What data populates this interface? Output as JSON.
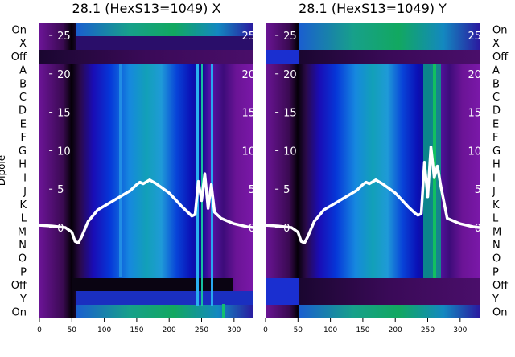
{
  "chart_data": [
    {
      "type": "heatmap",
      "title": "28.1 (HexS13=1049) X",
      "ylabel": "Dipole",
      "row_labels": [
        "On",
        "X",
        "Off",
        "A",
        "B",
        "C",
        "D",
        "E",
        "F",
        "G",
        "H",
        "I",
        "J",
        "K",
        "L",
        "M",
        "N",
        "O",
        "P",
        "Off",
        "Y",
        "On"
      ],
      "x_ticks": [
        0,
        50,
        100,
        150,
        200,
        250,
        300
      ],
      "xlim": [
        0,
        330
      ],
      "y_ticks": [
        0,
        5,
        10,
        15,
        20,
        25
      ],
      "trace": {
        "x": [
          0,
          20,
          40,
          50,
          55,
          60,
          65,
          75,
          90,
          110,
          130,
          140,
          145,
          150,
          155,
          160,
          170,
          180,
          190,
          200,
          210,
          220,
          230,
          235,
          240,
          245,
          250,
          255,
          260,
          265,
          270,
          280,
          300,
          320,
          330
        ],
        "y": [
          0.3,
          0.2,
          0.0,
          -0.6,
          -1.8,
          -2.0,
          -1.2,
          0.8,
          2.3,
          3.3,
          4.3,
          4.8,
          5.2,
          5.6,
          5.9,
          5.7,
          6.2,
          5.7,
          5.1,
          4.5,
          3.6,
          2.7,
          1.9,
          1.5,
          1.7,
          6.0,
          3.5,
          7.0,
          2.5,
          5.6,
          2.0,
          1.2,
          0.5,
          0.1,
          0.0
        ]
      }
    },
    {
      "type": "heatmap",
      "title": "28.1 (HexS13=1049) Y",
      "ylabel": "",
      "row_labels": [
        "On",
        "X",
        "Off",
        "A",
        "B",
        "C",
        "D",
        "E",
        "F",
        "G",
        "H",
        "I",
        "J",
        "K",
        "L",
        "M",
        "N",
        "O",
        "P",
        "Off",
        "Y",
        "On"
      ],
      "x_ticks": [
        0,
        50,
        100,
        150,
        200,
        250,
        300
      ],
      "xlim": [
        0,
        330
      ],
      "y_ticks": [
        0,
        5,
        10,
        15,
        20,
        25
      ],
      "trace": {
        "x": [
          0,
          20,
          40,
          50,
          55,
          60,
          65,
          75,
          90,
          110,
          130,
          140,
          145,
          150,
          155,
          160,
          170,
          180,
          190,
          200,
          210,
          220,
          230,
          235,
          240,
          245,
          250,
          255,
          260,
          265,
          270,
          280,
          300,
          320,
          330
        ],
        "y": [
          0.3,
          0.2,
          0.0,
          -0.6,
          -1.8,
          -2.0,
          -1.2,
          0.8,
          2.3,
          3.3,
          4.3,
          4.8,
          5.2,
          5.6,
          5.9,
          5.7,
          6.2,
          5.7,
          5.1,
          4.5,
          3.6,
          2.7,
          1.9,
          1.6,
          1.8,
          8.5,
          4.0,
          10.5,
          6.5,
          8.0,
          5.5,
          1.2,
          0.5,
          0.1,
          0.0
        ]
      }
    }
  ]
}
